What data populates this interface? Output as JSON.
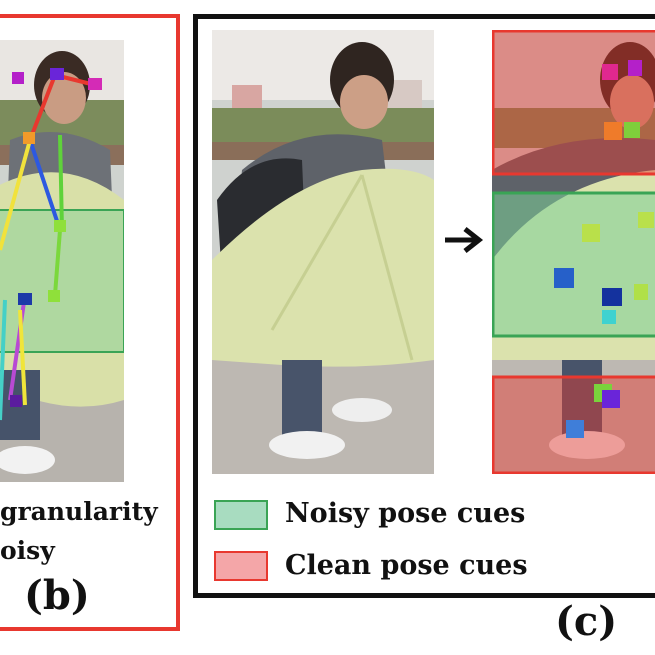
{
  "panel_b": {
    "caption_line1": "granularity",
    "caption_line2": "oisy",
    "label": "(b)"
  },
  "panel_c": {
    "label": "(c)",
    "arrow_icon": "right-arrow-icon"
  },
  "legend": {
    "noisy_label": "Noisy  pose cues",
    "clean_label": "Clean pose cues"
  },
  "colors": {
    "clean_box": "#e8382f",
    "noisy_box": "#3aa455",
    "noisy_fill": "#a8dcc0",
    "clean_fill": "#f4a6a8",
    "frame_black": "#111111"
  }
}
